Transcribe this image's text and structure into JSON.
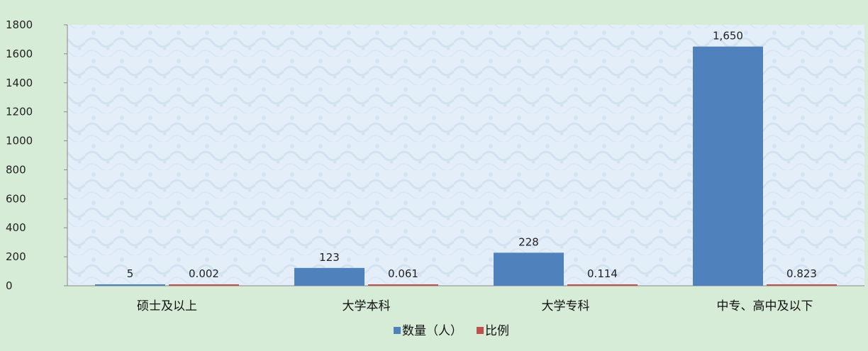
{
  "chart_data": {
    "type": "bar",
    "categories": [
      "硕士及以上",
      "大学本科",
      "大学专科",
      "中专、高中及以下"
    ],
    "series": [
      {
        "name": "数量（人）",
        "values": [
          5,
          123,
          228,
          1650
        ],
        "labels": [
          "5",
          "123",
          "228",
          "1,650"
        ],
        "color": "#4f81bd"
      },
      {
        "name": "比例",
        "values": [
          0.002,
          0.061,
          0.114,
          0.823
        ],
        "labels": [
          "0.002",
          "0.061",
          "0.114",
          "0.823"
        ],
        "color": "#c0504d"
      }
    ],
    "y_ticks": [
      "0",
      "200",
      "400",
      "600",
      "800",
      "1000",
      "1200",
      "1400",
      "1600",
      "1800"
    ],
    "ylim": [
      0,
      1800
    ],
    "legend_position": "bottom",
    "grid": false,
    "plot_background": "#e0ecf6",
    "page_background": "#d7ecd7"
  }
}
